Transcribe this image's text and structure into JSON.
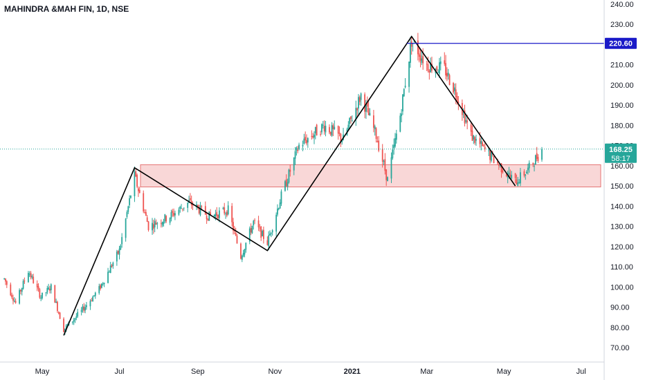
{
  "title": "MAHINDRA &MAH FIN, 1D, NSE",
  "chart_data": {
    "type": "candlestick",
    "title": "MAHINDRA &MAH FIN, 1D, NSE",
    "y_ticks": [
      "240.00",
      "230.00",
      "220.00",
      "210.00",
      "200.00",
      "190.00",
      "180.00",
      "170.00",
      "160.00",
      "150.00",
      "140.00",
      "130.00",
      "120.00",
      "110.00",
      "100.00",
      "90.00",
      "80.00",
      "70.00"
    ],
    "x_ticks": [
      {
        "label": "May",
        "bold": false
      },
      {
        "label": "Jul",
        "bold": false
      },
      {
        "label": "Sep",
        "bold": false
      },
      {
        "label": "Nov",
        "bold": false
      },
      {
        "label": "2021",
        "bold": true
      },
      {
        "label": "Mar",
        "bold": false
      },
      {
        "label": "May",
        "bold": false
      },
      {
        "label": "Jul",
        "bold": false
      }
    ],
    "ylim": [
      65,
      241
    ],
    "price_line": {
      "value": 220.6,
      "label": "220.60",
      "color": "#1a1ac8"
    },
    "last_price": {
      "value": 168.25,
      "label": "168.25",
      "countdown": "58:17",
      "color": "#26a69a"
    },
    "zone": {
      "low": 149.5,
      "high": 160.5,
      "fill": "#f8d0d0",
      "stroke": "#e57373"
    },
    "zigzag_points": [
      {
        "date": "2020-05-18",
        "price": 76
      },
      {
        "date": "2020-07-13",
        "price": 159
      },
      {
        "date": "2020-10-26",
        "price": 118
      },
      {
        "date": "2021-02-17",
        "price": 224
      },
      {
        "date": "2021-05-10",
        "price": 150
      }
    ],
    "candle_anchors": [
      {
        "date": "2020-04-01",
        "price": 104
      },
      {
        "date": "2020-04-10",
        "price": 92
      },
      {
        "date": "2020-04-20",
        "price": 108
      },
      {
        "date": "2020-04-30",
        "price": 95
      },
      {
        "date": "2020-05-08",
        "price": 100
      },
      {
        "date": "2020-05-18",
        "price": 79
      },
      {
        "date": "2020-06-01",
        "price": 88
      },
      {
        "date": "2020-06-15",
        "price": 99
      },
      {
        "date": "2020-07-01",
        "price": 118
      },
      {
        "date": "2020-07-13",
        "price": 155
      },
      {
        "date": "2020-07-24",
        "price": 130
      },
      {
        "date": "2020-08-10",
        "price": 135
      },
      {
        "date": "2020-08-25",
        "price": 142
      },
      {
        "date": "2020-09-10",
        "price": 135
      },
      {
        "date": "2020-09-25",
        "price": 138
      },
      {
        "date": "2020-10-05",
        "price": 115
      },
      {
        "date": "2020-10-15",
        "price": 132
      },
      {
        "date": "2020-10-26",
        "price": 122
      },
      {
        "date": "2020-11-06",
        "price": 145
      },
      {
        "date": "2020-11-20",
        "price": 170
      },
      {
        "date": "2020-12-10",
        "price": 180
      },
      {
        "date": "2020-12-25",
        "price": 173
      },
      {
        "date": "2021-01-08",
        "price": 195
      },
      {
        "date": "2021-01-20",
        "price": 175
      },
      {
        "date": "2021-01-29",
        "price": 153
      },
      {
        "date": "2021-02-08",
        "price": 185
      },
      {
        "date": "2021-02-17",
        "price": 222
      },
      {
        "date": "2021-03-01",
        "price": 210
      },
      {
        "date": "2021-03-15",
        "price": 208
      },
      {
        "date": "2021-03-25",
        "price": 195
      },
      {
        "date": "2021-04-05",
        "price": 175
      },
      {
        "date": "2021-04-20",
        "price": 165
      },
      {
        "date": "2021-05-10",
        "price": 152
      },
      {
        "date": "2021-05-20",
        "price": 158
      },
      {
        "date": "2021-05-31",
        "price": 168
      }
    ]
  }
}
